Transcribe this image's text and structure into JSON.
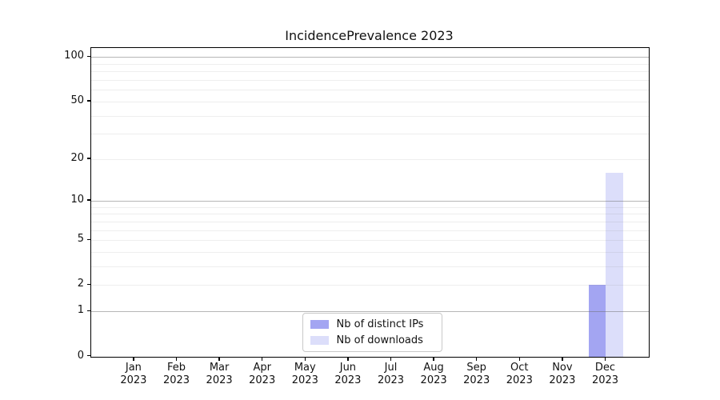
{
  "figure": {
    "title": "IncidencePrevalence 2023"
  },
  "chart_data": {
    "type": "bar",
    "title": "IncidencePrevalence 2023",
    "categories": [
      "Jan 2023",
      "Feb 2023",
      "Mar 2023",
      "Apr 2023",
      "May 2023",
      "Jun 2023",
      "Jul 2023",
      "Aug 2023",
      "Sep 2023",
      "Oct 2023",
      "Nov 2023",
      "Dec 2023"
    ],
    "x_tick_months": [
      "Jan",
      "Feb",
      "Mar",
      "Apr",
      "May",
      "Jun",
      "Jul",
      "Aug",
      "Sep",
      "Oct",
      "Nov",
      "Dec"
    ],
    "x_tick_year": "2023",
    "series": [
      {
        "name": "Nb of distinct IPs",
        "color": "#a3a5f2",
        "values": [
          0,
          0,
          0,
          0,
          0,
          0,
          0,
          0,
          0,
          0,
          0,
          2
        ]
      },
      {
        "name": "Nb of downloads",
        "color": "#dcdefa",
        "values": [
          0,
          0,
          0,
          0,
          0,
          0,
          0,
          0,
          0,
          0,
          0,
          16
        ]
      }
    ],
    "xlabel": "",
    "ylabel": "",
    "y_scale": "log1p",
    "y_ticks": [
      0,
      1,
      2,
      5,
      10,
      20,
      50,
      100
    ],
    "y_major_gridlines": [
      1,
      10,
      100
    ],
    "y_minor_gridlines": [
      2,
      3,
      4,
      5,
      6,
      7,
      8,
      9,
      20,
      30,
      40,
      50,
      60,
      70,
      80,
      90
    ],
    "ylim": [
      0,
      116
    ],
    "grid": true,
    "legend_position": "lower center",
    "colors": {
      "grid_major": "#b4b4b4",
      "grid_minor": "#ececec",
      "spine": "#000000",
      "background": "#ffffff"
    }
  }
}
